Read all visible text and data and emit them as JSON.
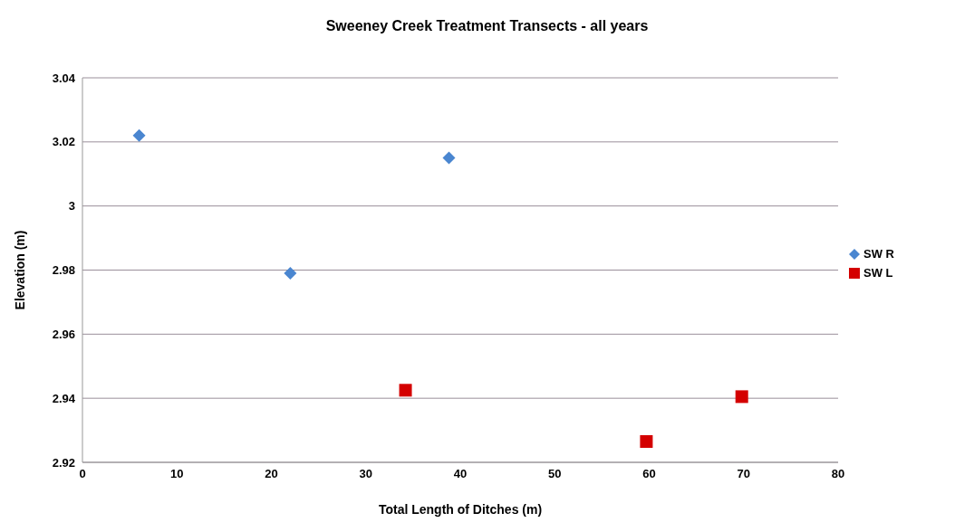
{
  "chart_data": {
    "type": "scatter",
    "title": "Sweeney Creek Treatment Transects - all years",
    "xlabel": "Total Length of Ditches (m)",
    "ylabel": "Elevation (m)",
    "xlim": [
      0,
      80
    ],
    "xticks": [
      0,
      10,
      20,
      30,
      40,
      50,
      60,
      70,
      80
    ],
    "ylim": [
      2.92,
      3.04
    ],
    "yticks": [
      2.92,
      2.94,
      2.96,
      2.98,
      3,
      3.02,
      3.04
    ],
    "grid": "y",
    "legend": "right",
    "series": [
      {
        "name": "SW R",
        "color": "#4a86d0",
        "marker": "diamond",
        "x": [
          6,
          22,
          38.8
        ],
        "values": [
          3.022,
          2.979,
          3.015
        ]
      },
      {
        "name": "SW L",
        "color": "#d40000",
        "marker": "square",
        "x": [
          34.2,
          59.7,
          69.8
        ],
        "values": [
          2.9425,
          2.9265,
          2.9405
        ]
      }
    ]
  }
}
